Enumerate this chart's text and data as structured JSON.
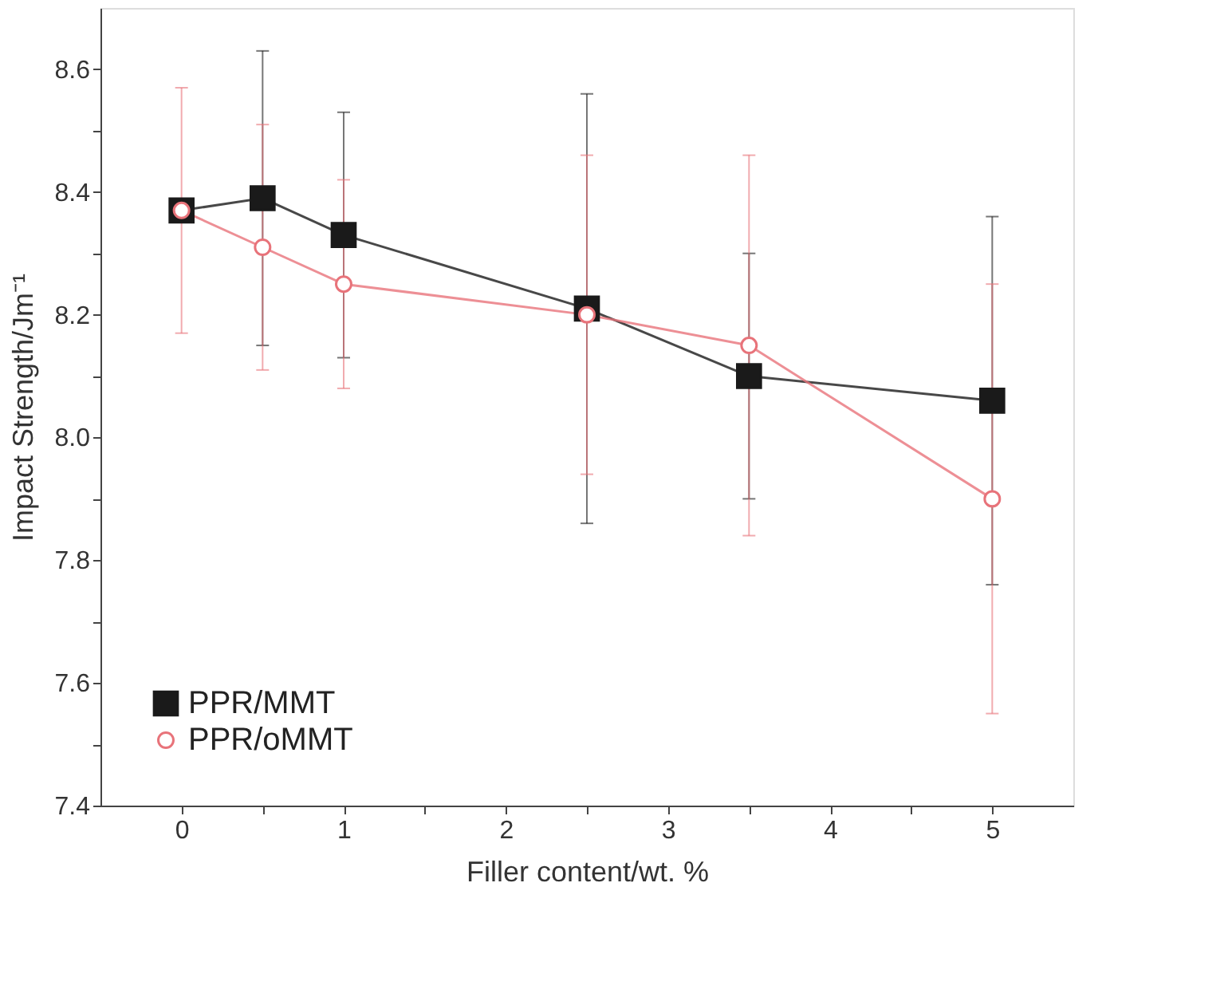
{
  "chart_data": {
    "type": "line",
    "xlabel": "Filler content/wt. %",
    "ylabel": "Impact Strength/Jm⁻¹",
    "x": [
      0,
      0.5,
      1,
      2.5,
      3.5,
      5
    ],
    "series": [
      {
        "name": "PPR/MMT",
        "color": "#1a1a1a",
        "marker": "square",
        "values": [
          8.37,
          8.39,
          8.33,
          8.21,
          8.1,
          8.06
        ],
        "errors": [
          null,
          0.24,
          0.2,
          0.35,
          0.2,
          0.3
        ]
      },
      {
        "name": "PPR/oMMT",
        "color": "#e8737a",
        "marker": "circle",
        "values": [
          8.37,
          8.31,
          8.25,
          8.2,
          8.15,
          7.9
        ],
        "errors": [
          0.2,
          0.2,
          0.17,
          0.26,
          0.31,
          0.35
        ]
      }
    ],
    "xlim": [
      -0.5,
      5.5
    ],
    "xticks": [
      0,
      {
        "value": 0.5,
        "label": null
      },
      1,
      {
        "value": 1.5,
        "label": null
      },
      2,
      {
        "value": 2.5,
        "label": null
      },
      3,
      {
        "value": 3.5,
        "label": null
      },
      4,
      {
        "value": 4.5,
        "label": null
      },
      5
    ],
    "ylim": [
      7.4,
      8.7
    ],
    "yticks": [
      7.4,
      {
        "value": 7.5,
        "label": null
      },
      7.6,
      {
        "value": 7.7,
        "label": null
      },
      7.8,
      {
        "value": 7.9,
        "label": null
      },
      {
        "value": 8.0,
        "label": "8.0"
      },
      {
        "value": 8.1,
        "label": null
      },
      8.2,
      {
        "value": 8.3,
        "label": null
      },
      8.4,
      {
        "value": 8.5,
        "label": null
      },
      8.6
    ],
    "grid": false,
    "legend": "bottom left",
    "line_style": "solid"
  }
}
